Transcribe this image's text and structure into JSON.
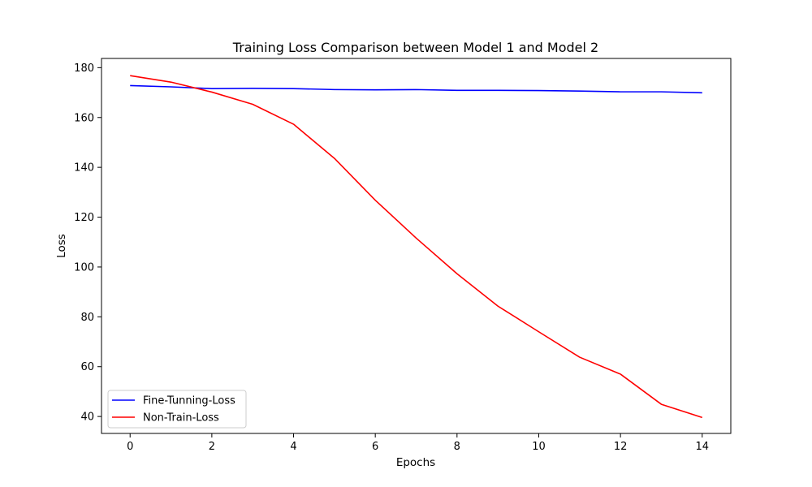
{
  "chart_data": {
    "type": "line",
    "title": "Training Loss Comparison between Model 1 and Model 2",
    "xlabel": "Epochs",
    "ylabel": "Loss",
    "xlim": [
      -0.7,
      14.7
    ],
    "ylim": [
      33.2,
      183.7
    ],
    "xticks": [
      0,
      2,
      4,
      6,
      8,
      10,
      12,
      14
    ],
    "yticks": [
      40,
      60,
      80,
      100,
      120,
      140,
      160,
      180
    ],
    "x": [
      0,
      1,
      2,
      3,
      4,
      5,
      6,
      7,
      8,
      9,
      10,
      11,
      12,
      13,
      14
    ],
    "series": [
      {
        "name": "Fine-Tunning-Loss",
        "color": "#0000ff",
        "values": [
          172.8,
          172.3,
          171.6,
          171.7,
          171.6,
          171.2,
          171.1,
          171.2,
          170.9,
          170.9,
          170.8,
          170.6,
          170.3,
          170.3,
          169.9
        ]
      },
      {
        "name": "Non-Train-Loss",
        "color": "#ff0000",
        "values": [
          176.8,
          174.2,
          170.2,
          165.3,
          157.3,
          143.6,
          126.8,
          111.6,
          97.3,
          84.3,
          74.0,
          63.8,
          57.0,
          44.9,
          39.6
        ]
      }
    ],
    "legend_position": "lower-left",
    "grid": false
  }
}
